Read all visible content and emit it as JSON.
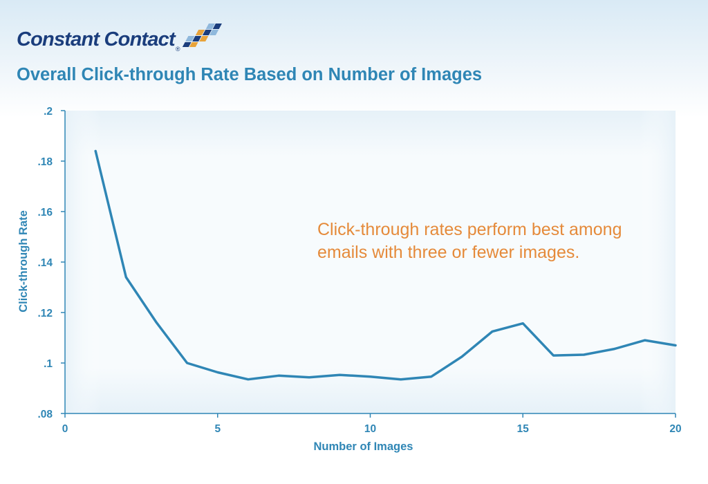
{
  "brand": {
    "logo_text": "Constant Contact",
    "logo_reg_mark": "®",
    "logo_colors": [
      "#1a3d7c",
      "#e8a33a",
      "#8fb8dc"
    ]
  },
  "colors": {
    "title": "#2f86b5",
    "line": "#2f86b5",
    "axis": "#2f86b5",
    "annotation": "#e58a3a"
  },
  "chart_data": {
    "type": "line",
    "title": "Overall Click-through Rate Based on Number of Images",
    "xlabel": "Number of Images",
    "ylabel": "Click-through Rate",
    "xlim": [
      0,
      20
    ],
    "ylim": [
      0.08,
      0.2
    ],
    "x_ticks": [
      0,
      5,
      10,
      15,
      20
    ],
    "x_tick_labels": [
      "0",
      "5",
      "10",
      "15",
      "20"
    ],
    "y_ticks": [
      0.08,
      0.1,
      0.12,
      0.14,
      0.16,
      0.18,
      0.2
    ],
    "y_tick_labels": [
      ".08",
      ".1",
      ".12",
      ".14",
      ".16",
      ".18",
      ".2"
    ],
    "grid": false,
    "legend": "none",
    "series": [
      {
        "x": [
          1,
          2,
          3,
          4,
          5,
          6,
          7,
          8,
          9,
          10,
          11,
          12,
          13,
          14,
          15,
          16,
          17,
          18,
          19,
          20
        ],
        "values": [
          0.184,
          0.134,
          0.116,
          0.1,
          0.0963,
          0.0935,
          0.095,
          0.0943,
          0.0953,
          0.0946,
          0.0935,
          0.0946,
          0.1025,
          0.1125,
          0.1157,
          0.103,
          0.1033,
          0.1056,
          0.109,
          0.107
        ]
      }
    ],
    "annotations": [
      {
        "lines": [
          "Click-through rates perform best among",
          "emails with three or fewer images."
        ]
      }
    ]
  }
}
